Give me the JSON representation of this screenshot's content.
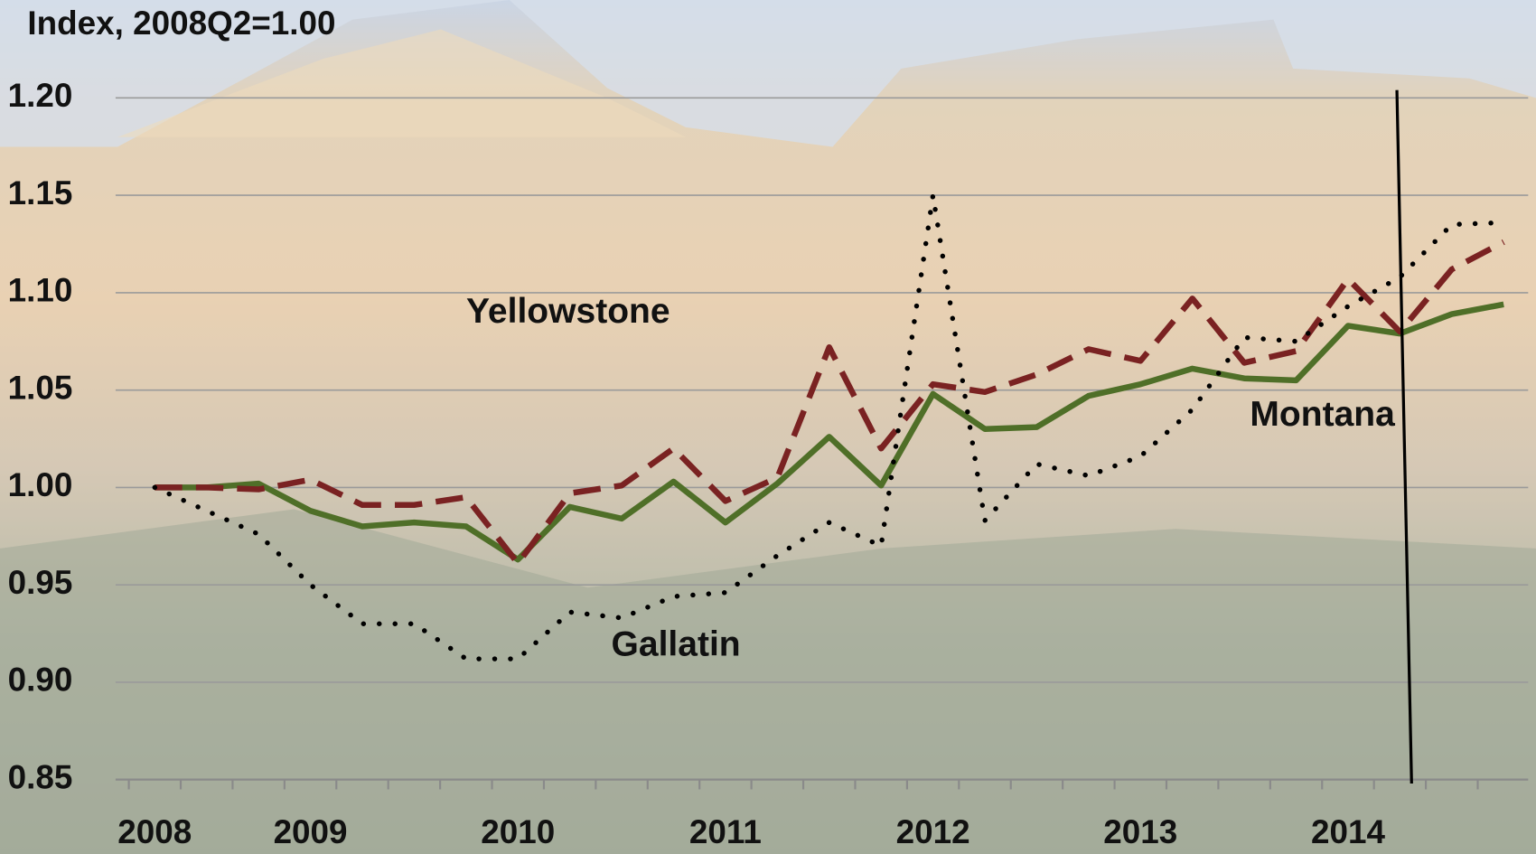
{
  "chart_data": {
    "type": "line",
    "title": "Index, 2008Q2=1.00",
    "categories": [
      "2008",
      null,
      null,
      "2009",
      null,
      null,
      null,
      "2010",
      null,
      null,
      null,
      "2011",
      null,
      null,
      null,
      "2012",
      null,
      null,
      null,
      "2013",
      null,
      null,
      null,
      "2014",
      null,
      null,
      null
    ],
    "series": [
      {
        "name": "Montana",
        "color": "#4f6f28",
        "dash": "solid",
        "values": [
          1.0,
          1.0,
          1.002,
          0.988,
          0.98,
          0.982,
          0.98,
          0.963,
          0.99,
          0.984,
          1.003,
          0.982,
          1.002,
          1.026,
          1.001,
          1.048,
          1.03,
          1.031,
          1.047,
          1.053,
          1.061,
          1.056,
          1.055,
          1.083,
          1.079,
          1.089,
          1.094
        ]
      },
      {
        "name": "Yellowstone",
        "color": "#7a2222",
        "dash": "dashed",
        "values": [
          1.0,
          1.0,
          0.999,
          1.004,
          0.991,
          0.991,
          0.995,
          0.961,
          0.997,
          1.001,
          1.02,
          0.993,
          1.005,
          1.072,
          1.02,
          1.053,
          1.049,
          1.058,
          1.071,
          1.065,
          1.097,
          1.064,
          1.07,
          1.107,
          1.08,
          1.112,
          1.126
        ]
      },
      {
        "name": "Gallatin",
        "color": "#000000",
        "dash": "dotted",
        "values": [
          1.0,
          0.988,
          0.976,
          0.95,
          0.93,
          0.93,
          0.912,
          0.912,
          0.936,
          0.933,
          0.944,
          0.946,
          0.965,
          0.982,
          0.97,
          1.15,
          0.983,
          1.012,
          1.006,
          1.016,
          1.04,
          1.077,
          1.075,
          1.093,
          1.108,
          1.135,
          1.136
        ]
      }
    ],
    "ylim": [
      0.85,
      1.2
    ],
    "yticks": [
      0.85,
      {
        "value": 0.9,
        "label": "0.90"
      },
      0.95,
      {
        "value": 1.0,
        "label": "1.00"
      },
      1.05,
      {
        "value": 1.1,
        "label": "1.10"
      },
      1.15,
      {
        "value": 1.2,
        "label": "1.20"
      }
    ],
    "grid": true
  }
}
